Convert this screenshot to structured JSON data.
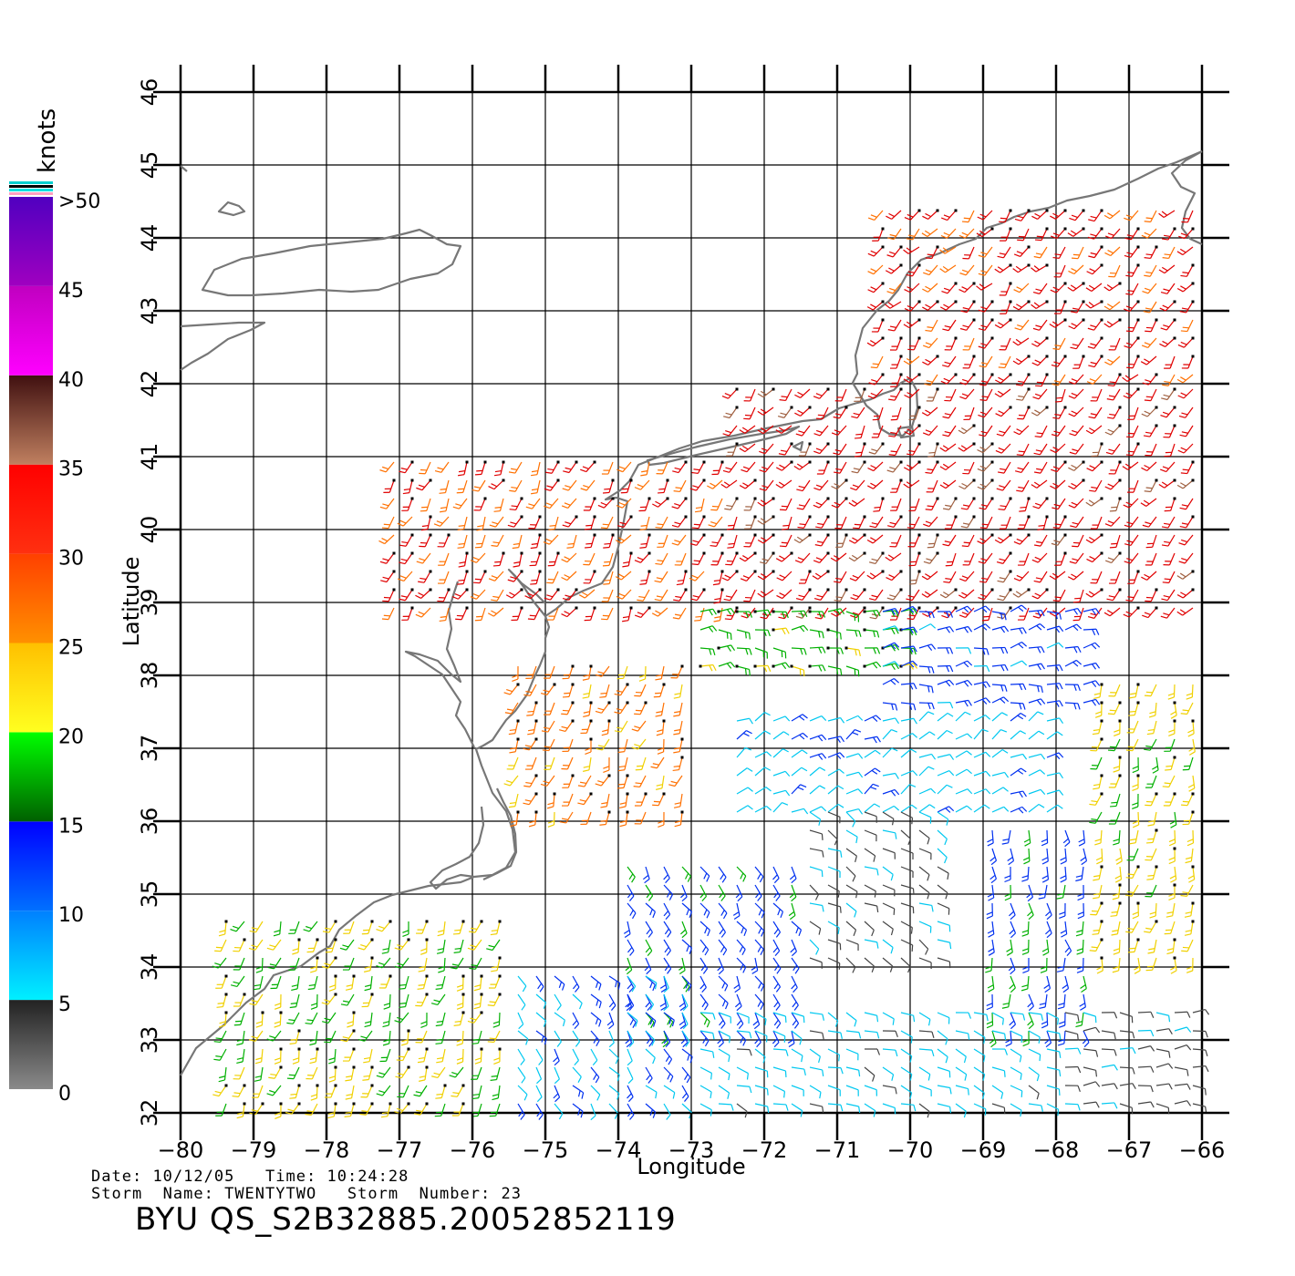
{
  "chart_data": {
    "type": "wind-barb-map",
    "title": "BYU QS_S2B32885.20052852119",
    "xlabel": "Longitude",
    "ylabel": "Latitude",
    "xlim": [
      -80,
      -66
    ],
    "ylim": [
      32,
      46
    ],
    "x_ticks": [
      "−80",
      "−79",
      "−78",
      "−77",
      "−76",
      "−75",
      "−74",
      "−73",
      "−72",
      "−71",
      "−70",
      "−69",
      "−68",
      "−67",
      "−66"
    ],
    "y_ticks": [
      "32",
      "33",
      "34",
      "35",
      "36",
      "37",
      "38",
      "39",
      "40",
      "41",
      "42",
      "43",
      "44",
      "45",
      "46"
    ],
    "grid": true,
    "colorbar": {
      "unit_label": "knots",
      "labels": [
        {
          "text": "0",
          "value": 0
        },
        {
          "text": "5",
          "value": 5
        },
        {
          "text": "10",
          "value": 10
        },
        {
          "text": "15",
          "value": 15
        },
        {
          "text": "20",
          "value": 20
        },
        {
          "text": "25",
          "value": 25
        },
        {
          "text": "30",
          "value": 30
        },
        {
          "text": "35",
          "value": 35
        },
        {
          "text": "40",
          "value": 40
        },
        {
          "text": "45",
          "value": 45
        },
        {
          "text": ">50",
          "value": 50
        }
      ],
      "bands": [
        {
          "from": 0,
          "to": 5,
          "top": "#222222",
          "bottom": "#8a8a8a"
        },
        {
          "from": 5,
          "to": 10,
          "top": "#0080ff",
          "bottom": "#00f0ff"
        },
        {
          "from": 10,
          "to": 15,
          "top": "#0000ff",
          "bottom": "#0070ff"
        },
        {
          "from": 15,
          "to": 20,
          "top": "#00ff00",
          "bottom": "#006000"
        },
        {
          "from": 20,
          "to": 25,
          "top": "#ffc000",
          "bottom": "#ffff20"
        },
        {
          "from": 25,
          "to": 30,
          "top": "#ff4000",
          "bottom": "#ff9000"
        },
        {
          "from": 30,
          "to": 35,
          "top": "#ff0000",
          "bottom": "#ff3010"
        },
        {
          "from": 35,
          "to": 40,
          "top": "#401010",
          "bottom": "#c08060"
        },
        {
          "from": 40,
          "to": 45,
          "top": "#c000c0",
          "bottom": "#ff00ff"
        },
        {
          "from": 45,
          "to": 50,
          "top": "#5000c0",
          "bottom": "#a000c0"
        }
      ],
      "cap_stripes": [
        "#00d0d0",
        "#000000",
        "#00e0e0",
        "#ffa0c0"
      ]
    },
    "wind_regions": [
      {
        "lon": [
          -77.2,
          -72.5
        ],
        "lat": [
          38.8,
          41.0
        ],
        "speed": 30,
        "dir": 210
      },
      {
        "lon": [
          -72.5,
          -66.0
        ],
        "lat": [
          38.8,
          42.0
        ],
        "speed": 33,
        "dir": 215
      },
      {
        "lon": [
          -70.5,
          -66.0
        ],
        "lat": [
          42.0,
          44.5
        ],
        "speed": 31,
        "dir": 220
      },
      {
        "lon": [
          -75.5,
          -73.0
        ],
        "lat": [
          36.0,
          38.2
        ],
        "speed": 27,
        "dir": 200
      },
      {
        "lon": [
          -73.0,
          -70.0
        ],
        "lat": [
          38.0,
          39.0
        ],
        "speed": 18,
        "dir": 90
      },
      {
        "lon": [
          -70.5,
          -67.5
        ],
        "lat": [
          37.5,
          39.0
        ],
        "speed": 12,
        "dir": 80
      },
      {
        "lon": [
          -72.5,
          -68.0
        ],
        "lat": [
          36.0,
          37.5
        ],
        "speed": 8,
        "dir": 60
      },
      {
        "lon": [
          -71.5,
          -69.5
        ],
        "lat": [
          34.0,
          36.2
        ],
        "speed": 4,
        "dir": 120
      },
      {
        "lon": [
          -74.0,
          -71.5
        ],
        "lat": [
          33.0,
          35.5
        ],
        "speed": 13,
        "dir": 150
      },
      {
        "lon": [
          -67.5,
          -66.0
        ],
        "lat": [
          34.0,
          38.0
        ],
        "speed": 22,
        "dir": 190
      },
      {
        "lon": [
          -69.0,
          -67.5
        ],
        "lat": [
          33.0,
          36.0
        ],
        "speed": 14,
        "dir": 170
      },
      {
        "lon": [
          -79.5,
          -75.5
        ],
        "lat": [
          32.0,
          34.8
        ],
        "speed": 21,
        "dir": 200
      },
      {
        "lon": [
          -75.5,
          -73.0
        ],
        "lat": [
          32.0,
          34.0
        ],
        "speed": 9,
        "dir": 140
      },
      {
        "lon": [
          -73.0,
          -68.0
        ],
        "lat": [
          32.0,
          33.5
        ],
        "speed": 7,
        "dir": 110
      },
      {
        "lon": [
          -68.0,
          -66.0
        ],
        "lat": [
          32.0,
          33.5
        ],
        "speed": 3,
        "dir": 90
      }
    ]
  },
  "footer": {
    "date_label": "Date:",
    "date": "10/12/05",
    "time_label": "Time:",
    "time": "10:24:28",
    "storm_name_label": "Storm  Name:",
    "storm_name": "TWENTYTWO",
    "storm_number_label": "Storm  Number:",
    "storm_number": "23"
  }
}
